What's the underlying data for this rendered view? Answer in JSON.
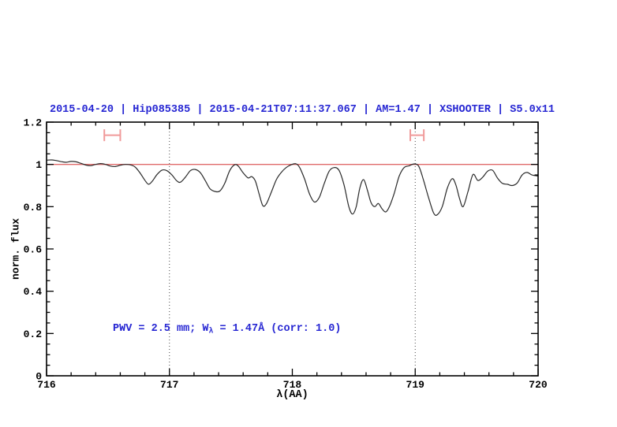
{
  "header": {
    "title": "2015-04-20 | Hip085385 | 2015-04-21T07:11:37.067 | AM=1.47 | XSHOOTER | S5.0x11",
    "title_parts": [
      "2015-04-20",
      "Hip085385",
      "2015-04-21T07:11:37.067",
      "AM=1.47",
      "XSHOOTER",
      "S5.0x11"
    ]
  },
  "colors": {
    "background": "#ffffff",
    "accent_blue": "#2727d3",
    "continuum_red": "#e06a6a",
    "marker_pink": "#f09a9a",
    "spectrum_line": "#2a2a2a",
    "frame_black": "#000000",
    "gridline_gray": "#444444"
  },
  "chart_data": {
    "type": "line",
    "xlabel": "λ(AA)",
    "ylabel": "norm. flux",
    "xlim": [
      716,
      720
    ],
    "ylim": [
      0,
      1.2
    ],
    "x_minor_step": 0.2,
    "y_minor_step": 0.05,
    "x_ticks": [
      {
        "value": 716,
        "label": "716"
      },
      {
        "value": 717,
        "label": "717"
      },
      {
        "value": 718,
        "label": "718"
      },
      {
        "value": 719,
        "label": "719"
      },
      {
        "value": 720,
        "label": "720"
      }
    ],
    "y_ticks": [
      {
        "value": 0,
        "label": "0"
      },
      {
        "value": 0.2,
        "label": "0.2"
      },
      {
        "value": 0.4,
        "label": "0.4"
      },
      {
        "value": 0.6,
        "label": "0.6"
      },
      {
        "value": 0.8,
        "label": "0.8"
      },
      {
        "value": 1,
        "label": "1"
      },
      {
        "value": 1.2,
        "label": "1.2"
      }
    ],
    "grid_vlines_dotted": [
      717,
      719
    ],
    "continuum_line": {
      "y": 1.0
    },
    "range_markers": [
      {
        "x_start": 716.47,
        "x_end": 716.6,
        "y": 1.138,
        "cap_half_height": 0.028
      },
      {
        "x_start": 718.96,
        "x_end": 719.07,
        "y": 1.138,
        "cap_half_height": 0.028
      }
    ],
    "annotation": {
      "text": "PWV = 2.5 mm; W_λ = 1.47Å (corr: 1.0)",
      "prefix": "PWV = 2.5 mm; W",
      "sub": "λ",
      "suffix": " = 1.47Å (corr: 1.0)"
    },
    "series": [
      {
        "name": "telluric spectrum",
        "x": [
          716.0,
          716.04,
          716.08,
          716.12,
          716.16,
          716.2,
          716.24,
          716.28,
          716.32,
          716.36,
          716.4,
          716.44,
          716.48,
          716.52,
          716.56,
          716.6,
          716.64,
          716.68,
          716.72,
          716.76,
          716.8,
          716.83,
          716.86,
          716.9,
          716.94,
          716.98,
          717.02,
          717.06,
          717.09,
          717.13,
          717.17,
          717.21,
          717.25,
          717.29,
          717.33,
          717.37,
          717.41,
          717.45,
          717.49,
          717.53,
          717.56,
          717.6,
          717.64,
          717.67,
          717.7,
          717.73,
          717.76,
          717.79,
          717.83,
          717.87,
          717.91,
          717.95,
          717.99,
          718.03,
          718.06,
          718.1,
          718.14,
          718.18,
          718.22,
          718.26,
          718.3,
          718.34,
          718.38,
          718.42,
          718.46,
          718.49,
          718.52,
          718.55,
          718.58,
          718.61,
          718.64,
          718.67,
          718.7,
          718.73,
          718.76,
          718.79,
          718.83,
          718.87,
          718.91,
          718.95,
          718.99,
          719.03,
          719.07,
          719.11,
          719.15,
          719.18,
          719.22,
          719.26,
          719.3,
          719.33,
          719.36,
          719.39,
          719.43,
          719.47,
          719.51,
          719.55,
          719.59,
          719.63,
          719.67,
          719.71,
          719.75,
          719.79,
          719.83,
          719.87,
          719.91,
          719.95,
          720.0
        ],
        "y": [
          1.02,
          1.021,
          1.018,
          1.013,
          1.01,
          1.014,
          1.012,
          1.005,
          0.997,
          0.994,
          1.0,
          1.004,
          1.0,
          0.992,
          0.99,
          0.996,
          1.0,
          0.998,
          0.988,
          0.96,
          0.925,
          0.906,
          0.92,
          0.953,
          0.973,
          0.97,
          0.95,
          0.922,
          0.916,
          0.94,
          0.97,
          0.976,
          0.962,
          0.925,
          0.885,
          0.872,
          0.874,
          0.91,
          0.97,
          0.998,
          0.992,
          0.96,
          0.936,
          0.942,
          0.92,
          0.86,
          0.805,
          0.815,
          0.87,
          0.928,
          0.962,
          0.985,
          0.998,
          1.003,
          0.985,
          0.93,
          0.86,
          0.822,
          0.845,
          0.91,
          0.968,
          0.985,
          0.972,
          0.905,
          0.8,
          0.765,
          0.8,
          0.89,
          0.928,
          0.88,
          0.82,
          0.8,
          0.815,
          0.79,
          0.775,
          0.8,
          0.865,
          0.945,
          0.985,
          0.993,
          1.002,
          0.99,
          0.92,
          0.84,
          0.77,
          0.762,
          0.8,
          0.885,
          0.932,
          0.905,
          0.84,
          0.8,
          0.872,
          0.952,
          0.924,
          0.94,
          0.968,
          0.972,
          0.935,
          0.91,
          0.906,
          0.9,
          0.912,
          0.95,
          0.962,
          0.95,
          0.945
        ]
      }
    ]
  }
}
